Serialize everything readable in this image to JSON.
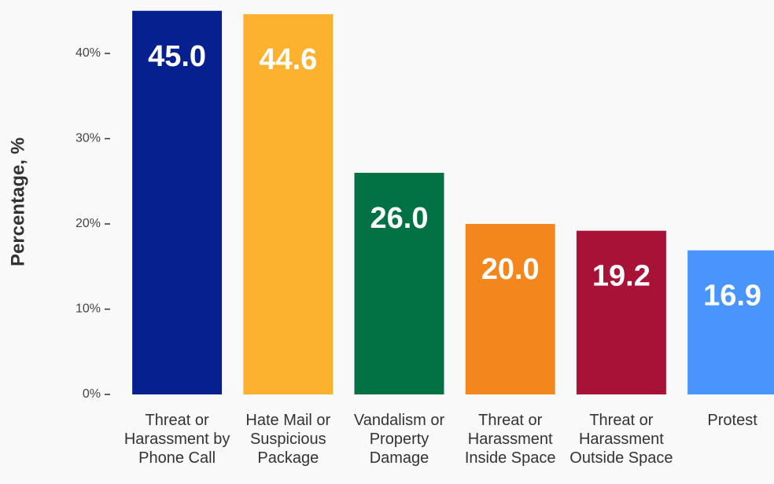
{
  "chart_data": {
    "type": "bar",
    "y_label": "Percentage, %",
    "categories": [
      "Threat or Harassment by Phone Call",
      "Hate Mail or Suspicious Package",
      "Vandalism or Property Damage",
      "Threat or Harassment Inside Space",
      "Threat or Harassment Outside Space",
      "Protest"
    ],
    "values": [
      45,
      44.6,
      26,
      20,
      19.2,
      16.9
    ],
    "value_labels": [
      "45.0",
      "44.6",
      "26.0",
      "20.0",
      "19.2",
      "16.9"
    ],
    "colors": [
      "#06218f",
      "#fdb22f",
      "#027244",
      "#f3861d",
      "#a81236",
      "#4a95fd"
    ],
    "ylim": [
      0,
      45
    ],
    "yticks": [
      {
        "value": 0,
        "label": "0%"
      },
      {
        "value": 10,
        "label": "10%"
      },
      {
        "value": 20,
        "label": "20%"
      },
      {
        "value": 30,
        "label": "30%"
      },
      {
        "value": 40,
        "label": "40%"
      }
    ]
  }
}
